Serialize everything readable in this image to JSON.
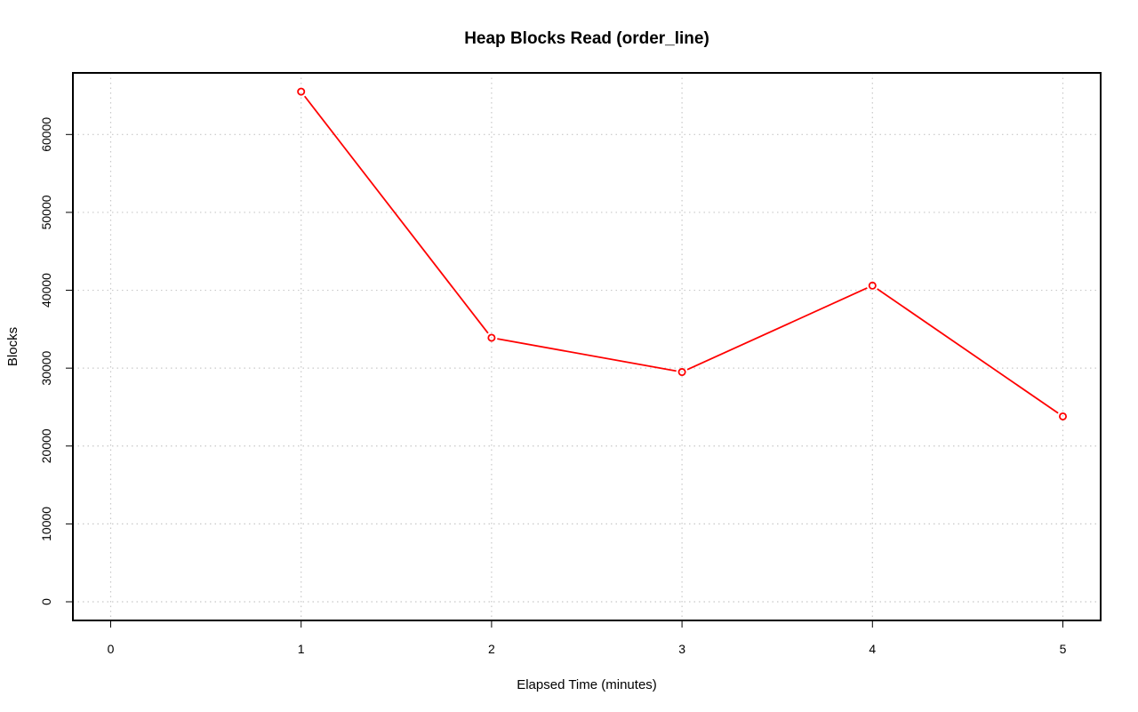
{
  "chart_data": {
    "type": "line",
    "title": "Heap Blocks Read (order_line)",
    "xlabel": "Elapsed Time (minutes)",
    "ylabel": "Blocks",
    "xlim": [
      0,
      5
    ],
    "ylim": [
      0,
      65000
    ],
    "x_ticks": [
      0,
      1,
      2,
      3,
      4,
      5
    ],
    "y_ticks": [
      0,
      10000,
      20000,
      30000,
      40000,
      50000,
      60000
    ],
    "x_tick_labels": [
      "0",
      "1",
      "2",
      "3",
      "4",
      "5"
    ],
    "y_tick_labels": [
      "0",
      "10000",
      "20000",
      "30000",
      "40000",
      "50000",
      "60000"
    ],
    "grid": true,
    "series": [
      {
        "x": [
          1,
          2,
          3,
          4,
          5
        ],
        "values": [
          65500,
          33900,
          29500,
          40600,
          23800
        ],
        "color": "#ff0000",
        "marker": "open-circle"
      }
    ]
  }
}
